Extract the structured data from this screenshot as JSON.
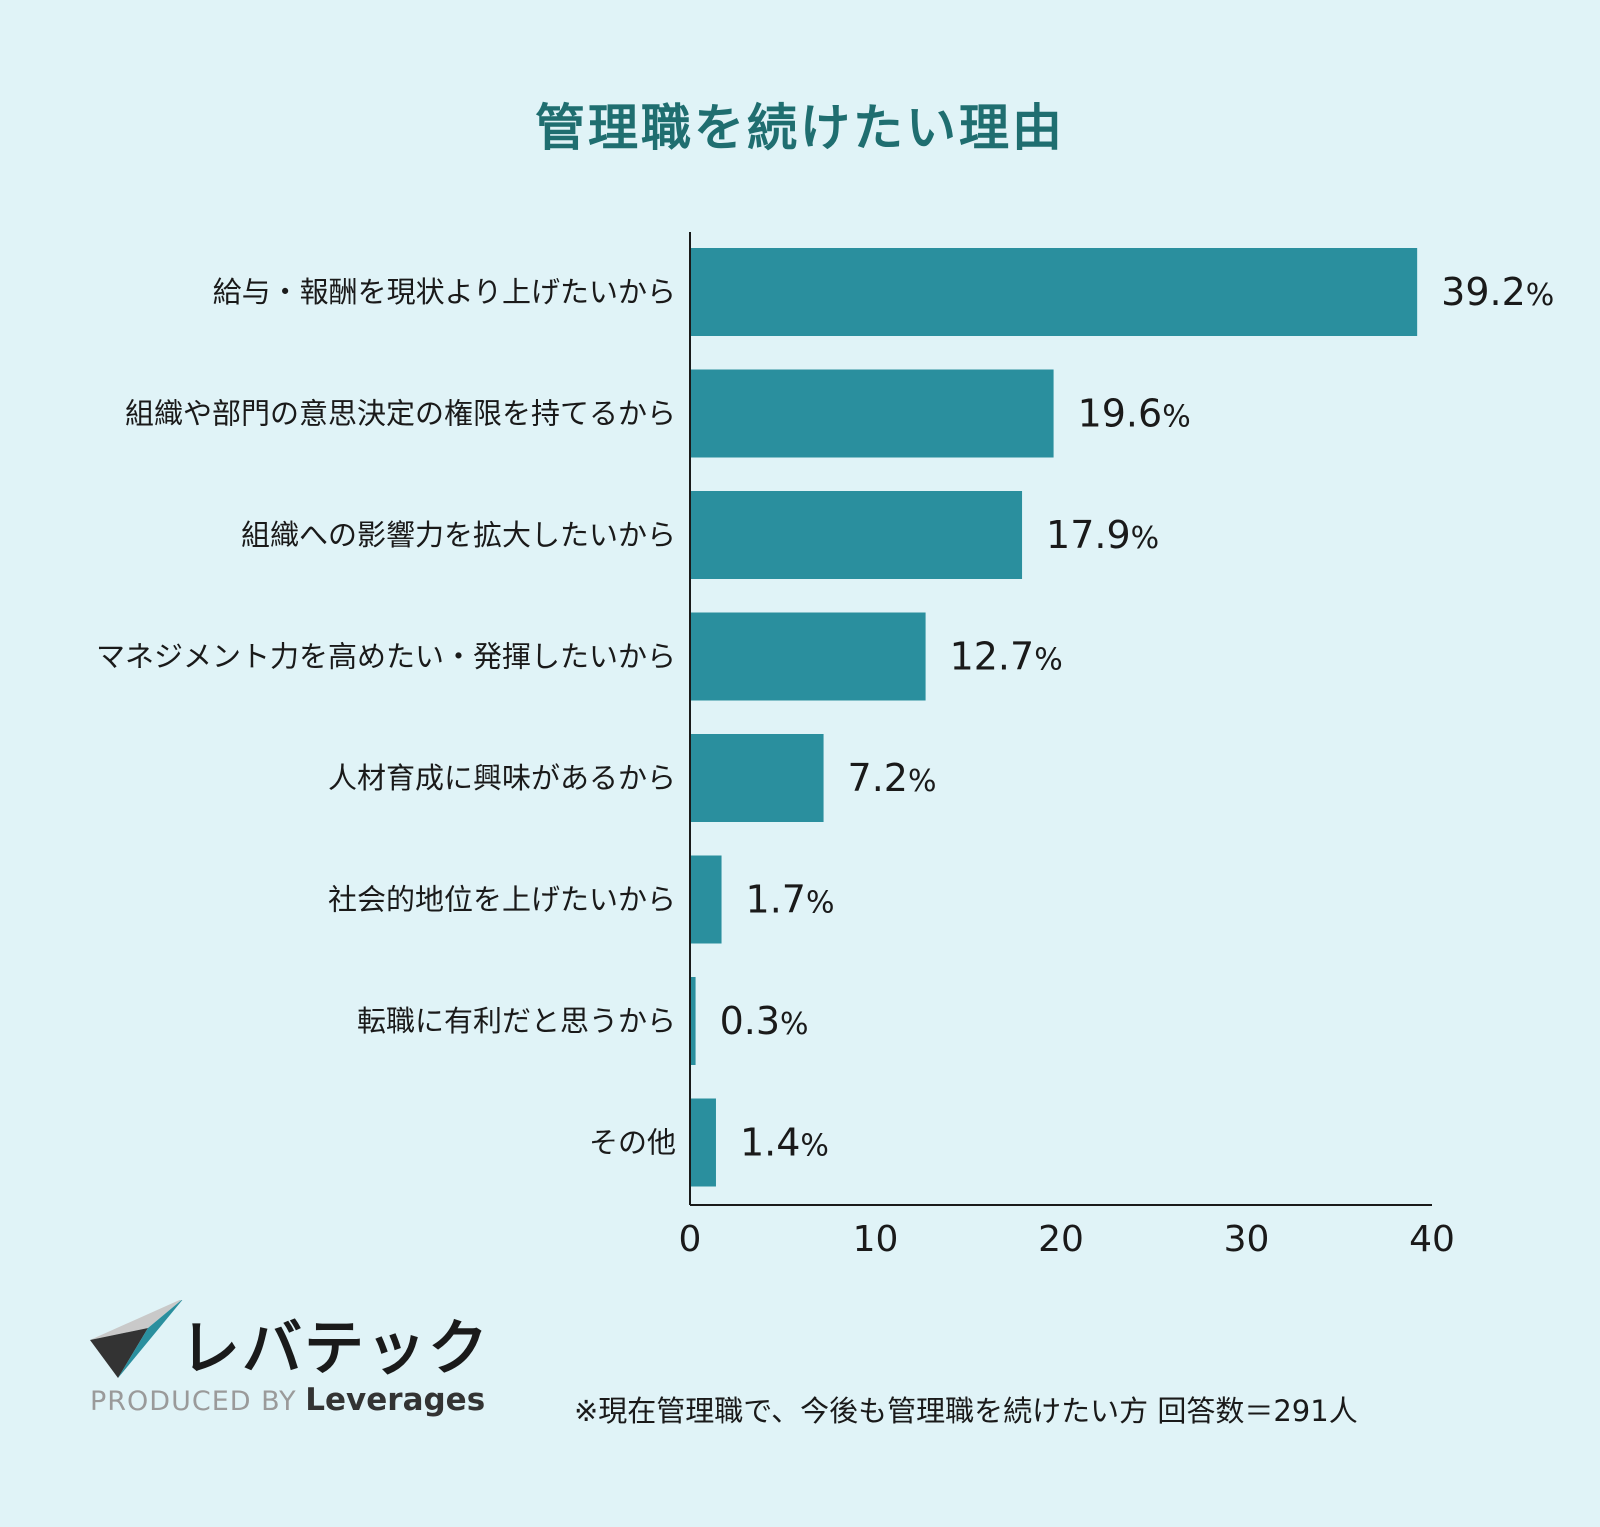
{
  "chart_data": {
    "type": "bar",
    "orientation": "horizontal",
    "title": "管理職を続けたい理由",
    "categories": [
      "給与・報酬を現状より上げたいから",
      "組織や部門の意思決定の権限を持てるから",
      "組織への影響力を拡大したいから",
      "マネジメント力を高めたい・発揮したいから",
      "人材育成に興味があるから",
      "社会的地位を上げたいから",
      "転職に有利だと思うから",
      "その他"
    ],
    "values": [
      39.2,
      19.6,
      17.9,
      12.7,
      7.2,
      1.7,
      0.3,
      1.4
    ],
    "value_labels": [
      "39.2",
      "19.6",
      "17.9",
      "12.7",
      "7.2",
      "1.7",
      "0.3",
      "1.4"
    ],
    "unit": "%",
    "xlim": [
      0,
      40
    ],
    "xticks": [
      0,
      10,
      20,
      30,
      40
    ],
    "grid": false,
    "bar_color": "#2a8f9e"
  },
  "logo": {
    "name": "レバテック",
    "produced_prefix": "PRODUCED BY",
    "produced_brand": "Leverages",
    "colors": {
      "teal": "#2a8f9e",
      "gray": "#c9c9c9",
      "dark": "#333333"
    }
  },
  "footnote": "※現在管理職で、今後も管理職を続けたい方 回答数＝291人"
}
